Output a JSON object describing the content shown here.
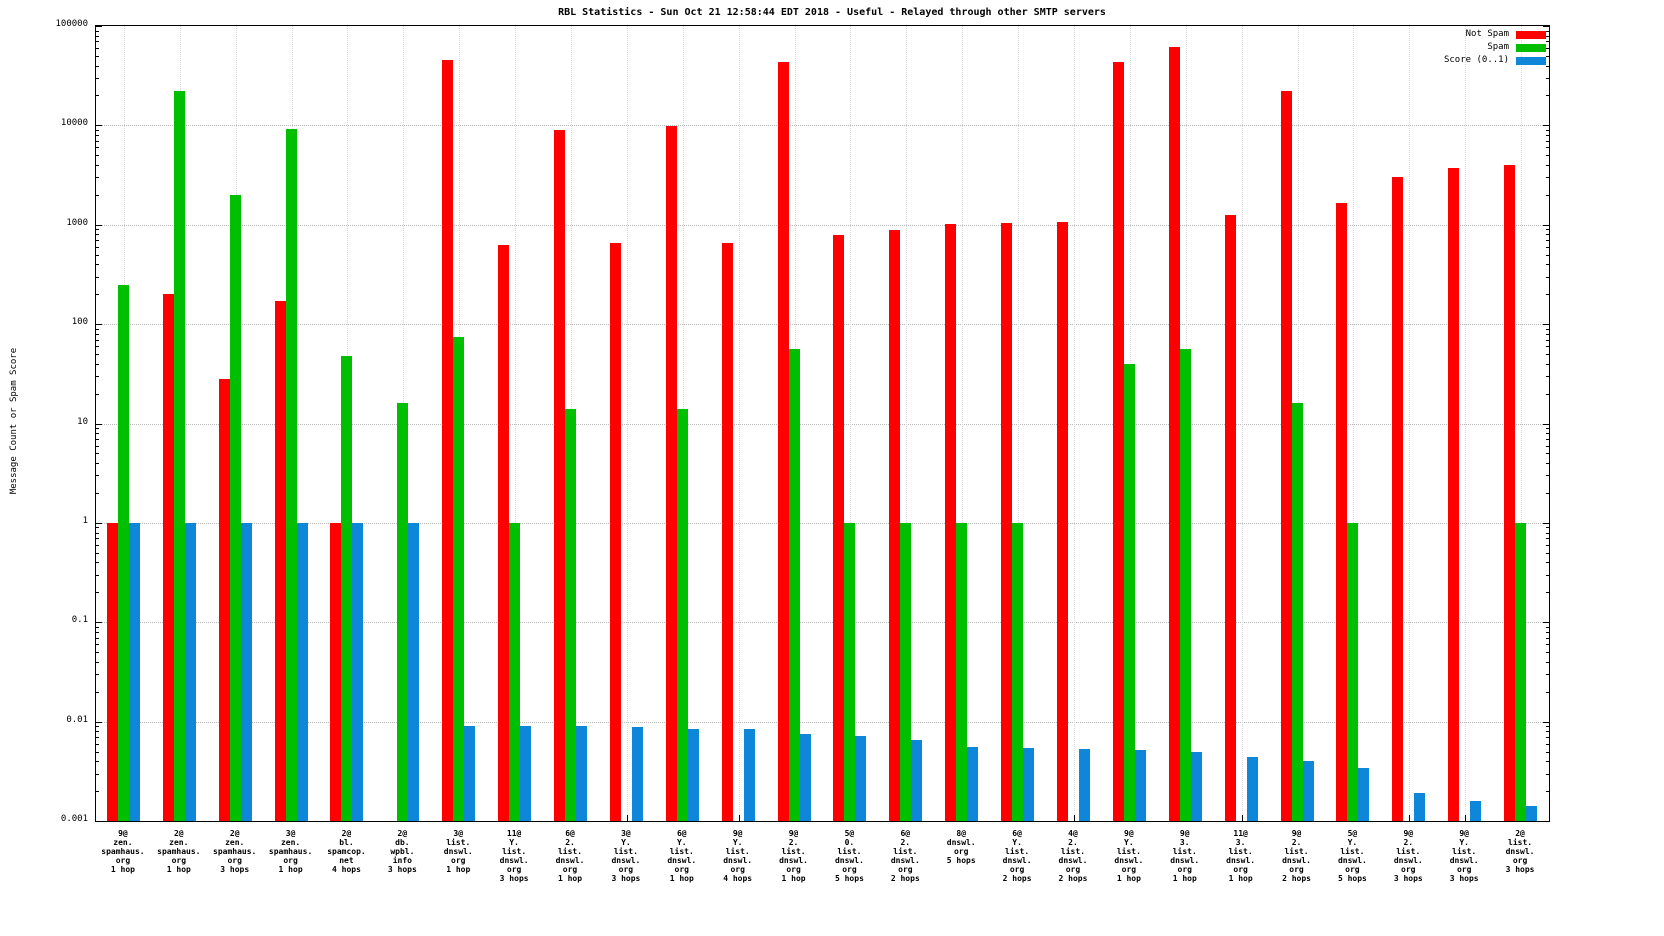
{
  "title": "RBL Statistics - Sun Oct 21 12:58:44 EDT 2018 - Useful - Relayed through other SMTP servers",
  "ylabel": "Message Count or Spam Score",
  "legend": [
    {
      "label": "Not Spam",
      "color": "#ff0000"
    },
    {
      "label": "Spam",
      "color": "#00bf00"
    },
    {
      "label": "Score (0..1)",
      "color": "#0f87d8"
    }
  ],
  "chart_data": {
    "type": "bar",
    "scale": "log-y",
    "grid": true,
    "legend_position": "top-right",
    "ylim": [
      0.001,
      100000
    ],
    "ytick_labels": [
      "100000",
      "10000",
      "1000",
      "100",
      "10",
      "1",
      "0.1",
      "0.01",
      "0.001"
    ],
    "categories": [
      [
        "9@",
        "zen.",
        "spamhaus.",
        "org",
        "1 hop"
      ],
      [
        "2@",
        "zen.",
        "spamhaus.",
        "org",
        "1 hop"
      ],
      [
        "2@",
        "zen.",
        "spamhaus.",
        "org",
        "3 hops"
      ],
      [
        "3@",
        "zen.",
        "spamhaus.",
        "org",
        "1 hop"
      ],
      [
        "2@",
        "bl.",
        "spamcop.",
        "net",
        "4 hops"
      ],
      [
        "2@",
        "db.",
        "wpbl.",
        "info",
        "3 hops"
      ],
      [
        "3@",
        "list.",
        "dnswl.",
        "org",
        "1 hop"
      ],
      [
        "11@",
        "Y.",
        "list.",
        "dnswl.",
        "org",
        "3 hops"
      ],
      [
        "6@",
        "2.",
        "list.",
        "dnswl.",
        "org",
        "1 hop"
      ],
      [
        "3@",
        "Y.",
        "list.",
        "dnswl.",
        "org",
        "3 hops"
      ],
      [
        "6@",
        "Y.",
        "list.",
        "dnswl.",
        "org",
        "1 hop"
      ],
      [
        "9@",
        "Y.",
        "list.",
        "dnswl.",
        "org",
        "4 hops"
      ],
      [
        "9@",
        "2.",
        "list.",
        "dnswl.",
        "org",
        "1 hop"
      ],
      [
        "5@",
        "0.",
        "list.",
        "dnswl.",
        "org",
        "5 hops"
      ],
      [
        "6@",
        "2.",
        "list.",
        "dnswl.",
        "org",
        "2 hops"
      ],
      [
        "8@",
        "dnswl.",
        "org",
        "5 hops"
      ],
      [
        "6@",
        "Y.",
        "list.",
        "dnswl.",
        "org",
        "2 hops"
      ],
      [
        "4@",
        "2.",
        "list.",
        "dnswl.",
        "org",
        "2 hops"
      ],
      [
        "9@",
        "Y.",
        "list.",
        "dnswl.",
        "org",
        "1 hop"
      ],
      [
        "9@",
        "3.",
        "list.",
        "dnswl.",
        "org",
        "1 hop"
      ],
      [
        "11@",
        "3.",
        "list.",
        "dnswl.",
        "org",
        "1 hop"
      ],
      [
        "9@",
        "2.",
        "list.",
        "dnswl.",
        "org",
        "2 hops"
      ],
      [
        "5@",
        "Y.",
        "list.",
        "dnswl.",
        "org",
        "5 hops"
      ],
      [
        "9@",
        "2.",
        "list.",
        "dnswl.",
        "org",
        "3 hops"
      ],
      [
        "9@",
        "Y.",
        "list.",
        "dnswl.",
        "org",
        "3 hops"
      ],
      [
        "2@",
        "list.",
        "dnswl.",
        "org",
        "3 hops"
      ]
    ],
    "series": [
      {
        "name": "Not Spam",
        "color": "#ff0000",
        "values": [
          1,
          200,
          28,
          170,
          1,
          null,
          45000,
          620,
          9000,
          650,
          9800,
          650,
          43000,
          780,
          880,
          1020,
          1030,
          1060,
          43000,
          62000,
          1250,
          22000,
          1650,
          3000,
          3700,
          4000
        ]
      },
      {
        "name": "Spam",
        "color": "#00bf00",
        "values": [
          250,
          22000,
          2000,
          9300,
          48,
          16,
          75,
          1,
          14,
          null,
          14,
          null,
          56,
          1,
          1,
          1,
          1,
          null,
          40,
          56,
          null,
          16,
          1,
          null,
          null,
          1
        ]
      },
      {
        "name": "Score (0..1)",
        "color": "#0f87d8",
        "values": [
          1,
          1,
          1,
          1,
          1,
          1,
          0.009,
          0.009,
          0.009,
          0.0088,
          0.0085,
          0.0085,
          0.0075,
          0.0072,
          0.0065,
          0.0055,
          0.0054,
          0.0053,
          0.0052,
          0.0049,
          0.0044,
          0.004,
          0.0034,
          0.0019,
          0.0016,
          0.0014
        ]
      }
    ]
  }
}
